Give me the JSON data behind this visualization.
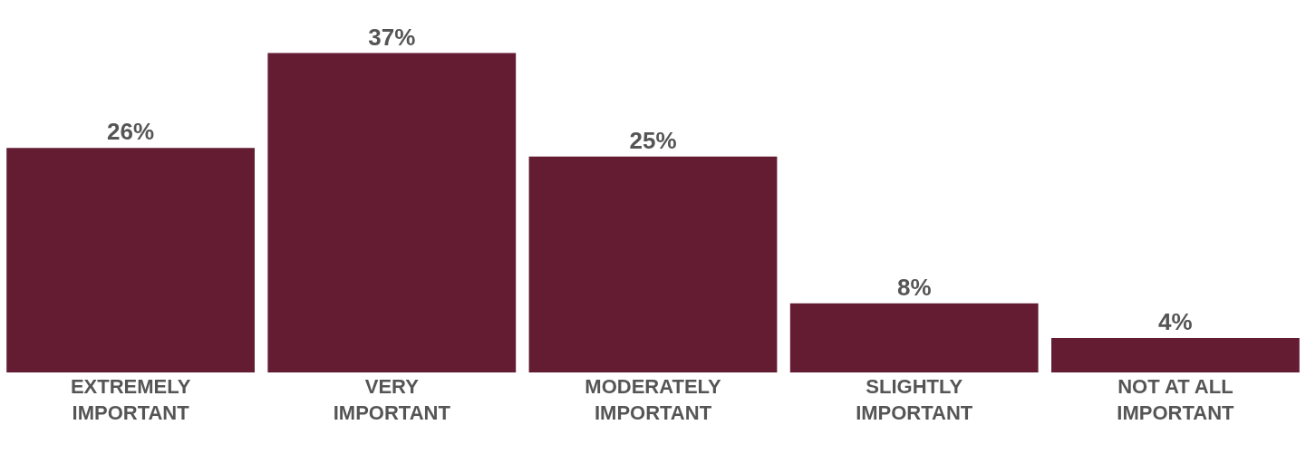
{
  "chart_data": {
    "type": "bar",
    "categories": [
      "EXTREMELY\nIMPORTANT",
      "VERY\nIMPORTANT",
      "MODERATELY\nIMPORTANT",
      "SLIGHTLY\nIMPORTANT",
      "NOT AT ALL\nIMPORTANT"
    ],
    "values": [
      26,
      37,
      25,
      8,
      4
    ],
    "value_labels": [
      "26%",
      "37%",
      "25%",
      "8%",
      "4%"
    ],
    "color": "#641c33"
  }
}
